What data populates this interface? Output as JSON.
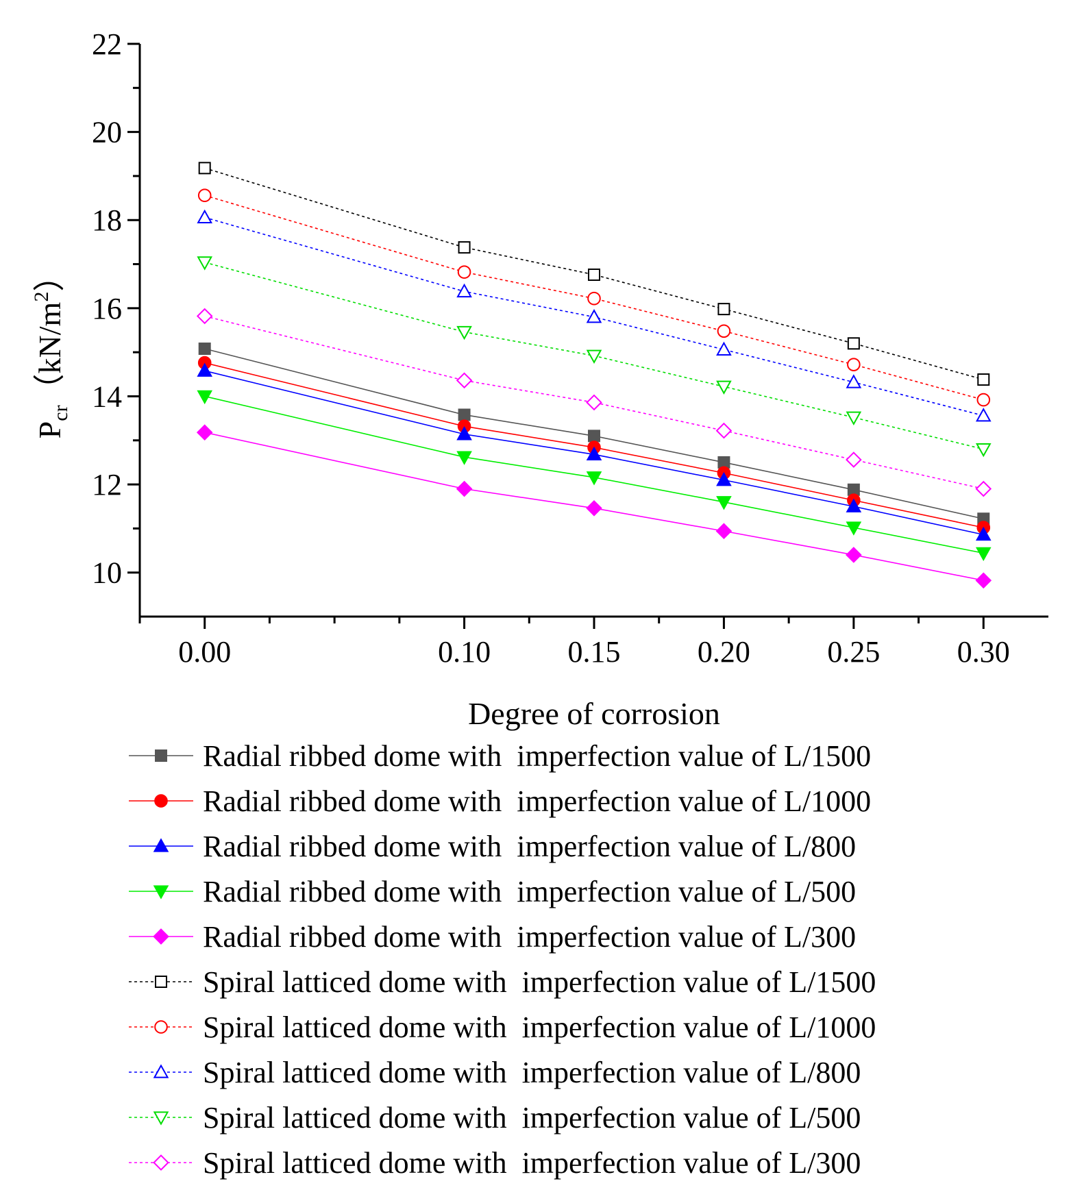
{
  "chart_data": {
    "type": "line",
    "title": "",
    "xlabel": "Degree of corrosion",
    "ylabel": {
      "main": "P",
      "sub": "cr",
      "unit_open": "（kN/m",
      "unit_sup": "2",
      "unit_close": "）"
    },
    "x": [
      0.0,
      0.1,
      0.15,
      0.2,
      0.25,
      0.3
    ],
    "x_tick_labels": [
      "0.00",
      "0.10",
      "0.15",
      "0.20",
      "0.25",
      "0.30"
    ],
    "xlim": [
      -0.025,
      0.325
    ],
    "ylim": [
      9,
      22
    ],
    "y_ticks": [
      10,
      12,
      14,
      16,
      18,
      20,
      22
    ],
    "y_tick_labels": [
      "10",
      "12",
      "14",
      "16",
      "18",
      "20",
      "22"
    ],
    "grid": false,
    "legend_position": "bottom",
    "series": [
      {
        "name": "Radial ribbed dome with  imperfection value of L/1500",
        "color": "#555555",
        "marker": "square-filled",
        "dash": "solid",
        "values": [
          15.08,
          13.58,
          13.1,
          12.5,
          11.88,
          11.22
        ]
      },
      {
        "name": "Radial ribbed dome with  imperfection value of L/1000",
        "color": "#ff0000",
        "marker": "circle-filled",
        "dash": "solid",
        "values": [
          14.76,
          13.32,
          12.84,
          12.26,
          11.64,
          11.02
        ]
      },
      {
        "name": "Radial ribbed dome with  imperfection value of L/800",
        "color": "#0000ff",
        "marker": "triangle-up-filled",
        "dash": "solid",
        "values": [
          14.58,
          13.14,
          12.68,
          12.1,
          11.5,
          10.86
        ]
      },
      {
        "name": "Radial ribbed dome with  imperfection value of L/500",
        "color": "#00ee00",
        "marker": "triangle-down-filled",
        "dash": "solid",
        "values": [
          14.0,
          12.62,
          12.16,
          11.6,
          11.02,
          10.44
        ]
      },
      {
        "name": "Radial ribbed dome with  imperfection value of L/300",
        "color": "#ff00ff",
        "marker": "diamond-filled",
        "dash": "solid",
        "values": [
          13.18,
          11.9,
          11.46,
          10.94,
          10.4,
          9.82
        ]
      },
      {
        "name": "Spiral latticed dome with  imperfection value of L/1500",
        "color": "#000000",
        "marker": "square-open",
        "dash": "dotted",
        "values": [
          19.18,
          17.38,
          16.76,
          15.98,
          15.2,
          14.38
        ]
      },
      {
        "name": "Spiral latticed dome with  imperfection value of L/1000",
        "color": "#ff0000",
        "marker": "circle-open",
        "dash": "dotted",
        "values": [
          18.56,
          16.82,
          16.22,
          15.48,
          14.72,
          13.92
        ]
      },
      {
        "name": "Spiral latticed dome with  imperfection value of L/800",
        "color": "#0000ff",
        "marker": "triangle-up-open",
        "dash": "dotted",
        "values": [
          18.06,
          16.38,
          15.8,
          15.06,
          14.32,
          13.56
        ]
      },
      {
        "name": "Spiral latticed dome with  imperfection value of L/500",
        "color": "#00dd00",
        "marker": "triangle-down-open",
        "dash": "dotted",
        "values": [
          17.04,
          15.46,
          14.92,
          14.22,
          13.52,
          12.8
        ]
      },
      {
        "name": "Spiral latticed dome with  imperfection value of L/300",
        "color": "#ff00ff",
        "marker": "diamond-open",
        "dash": "dotted",
        "values": [
          15.82,
          14.36,
          13.86,
          13.22,
          12.56,
          11.9
        ]
      }
    ]
  }
}
